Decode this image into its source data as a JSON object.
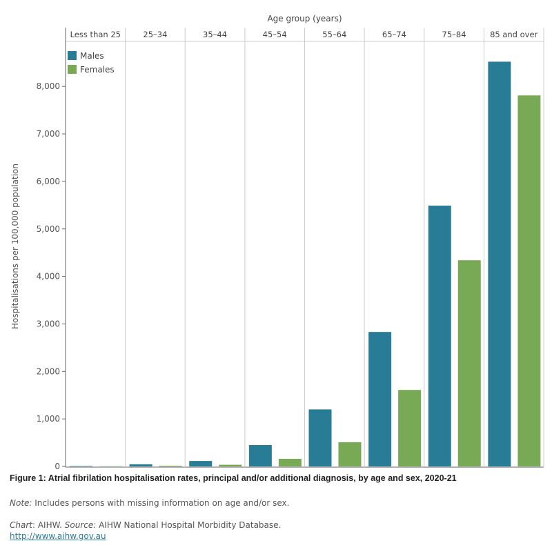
{
  "chart_data": {
    "type": "bar",
    "title": "Figure 1: Atrial fibrilation hospitalisation rates, principal and/or additional diagnosis, by age and sex, 2020-21",
    "xlabel": "Age group (years)",
    "ylabel": "Hospitalisations per 100,000 population",
    "categories": [
      "Less than 25",
      "25–34",
      "35–44",
      "45–54",
      "55–64",
      "65–74",
      "75–84",
      "85 and over"
    ],
    "series": [
      {
        "name": "Males",
        "color": "#287c96",
        "values": [
          10,
          45,
          115,
          450,
          1200,
          2830,
          5490,
          8520
        ]
      },
      {
        "name": "Females",
        "color": "#78a955",
        "values": [
          5,
          15,
          35,
          160,
          510,
          1610,
          4340,
          7810
        ]
      }
    ],
    "ylim": [
      0,
      8800
    ],
    "yticks": [
      0,
      1000,
      2000,
      3000,
      4000,
      5000,
      6000,
      7000,
      8000
    ],
    "ytick_labels": [
      "0",
      "1,000",
      "2,000",
      "3,000",
      "4,000",
      "5,000",
      "6,000",
      "7,000",
      "8,000"
    ],
    "legend": "top-left",
    "grid": false
  },
  "caption": {
    "note_label": "Note:",
    "note_text": " Includes persons with missing information on age and/or sex.",
    "chart_label": "Chart",
    "chart_text": ": AIHW.  ",
    "source_label": "Source:",
    "source_text": " AIHW National Hospital Morbidity Database.",
    "link": "http://www.aihw.gov.au"
  }
}
